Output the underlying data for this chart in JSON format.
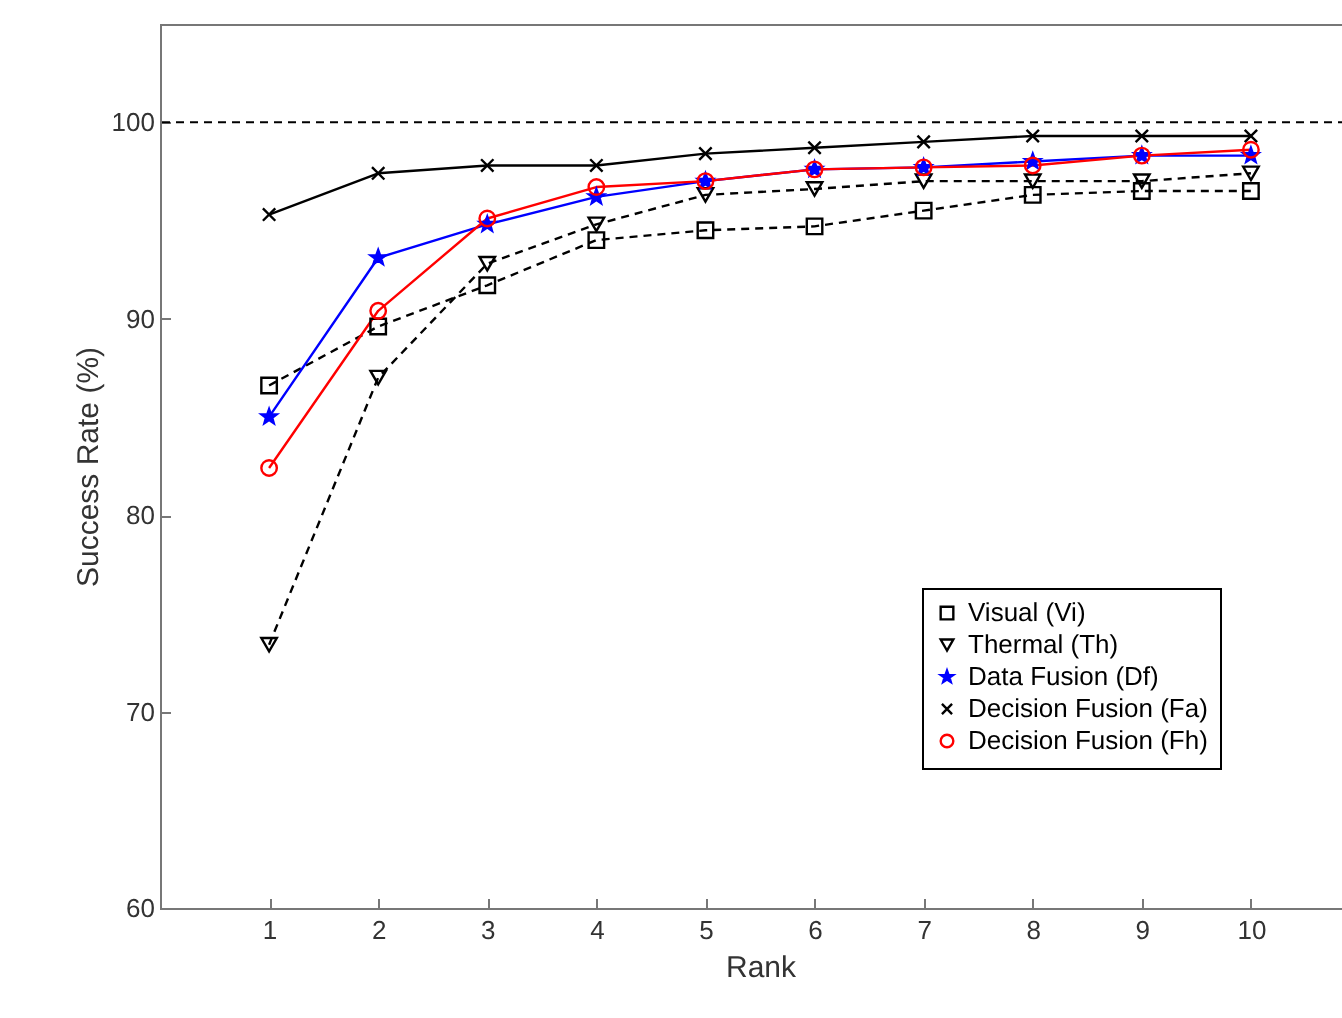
{
  "chart_data": {
    "type": "line",
    "xlabel": "Rank",
    "ylabel": "Success Rate (%)",
    "x": [
      1,
      2,
      3,
      4,
      5,
      6,
      7,
      8,
      9,
      10
    ],
    "xlim": [
      0,
      11
    ],
    "xticks": [
      1,
      2,
      3,
      4,
      5,
      6,
      7,
      8,
      9,
      10
    ],
    "ylim": [
      60,
      105
    ],
    "yticks": [
      60,
      70,
      80,
      90,
      100
    ],
    "grid": false,
    "legend": "bottom right",
    "ref_lines": [
      {
        "axis": "y",
        "value": 100,
        "color": "#000000",
        "line_style": "dashed"
      }
    ],
    "series": [
      {
        "name": "Visual (Vi)",
        "color": "#000000",
        "marker": "square",
        "line_style": "dashed",
        "values": [
          86.6,
          89.6,
          91.7,
          94.0,
          94.5,
          94.7,
          95.5,
          96.3,
          96.5,
          96.5
        ]
      },
      {
        "name": "Thermal (Th)",
        "color": "#000000",
        "marker": "triangle",
        "line_style": "dashed",
        "values": [
          73.4,
          87.0,
          92.8,
          94.8,
          96.3,
          96.6,
          97.0,
          97.0,
          97.0,
          97.4
        ]
      },
      {
        "name": "Data Fusion (Df)",
        "color": "#0000ff",
        "marker": "star",
        "line_style": "solid",
        "values": [
          85.0,
          93.1,
          94.8,
          96.2,
          97.0,
          97.6,
          97.7,
          98.0,
          98.3,
          98.3
        ]
      },
      {
        "name": "Decision Fusion (Fa)",
        "color": "#000000",
        "marker": "cross",
        "line_style": "solid",
        "values": [
          95.3,
          97.4,
          97.8,
          97.8,
          98.4,
          98.7,
          99.0,
          99.3,
          99.3,
          99.3
        ]
      },
      {
        "name": "Decision Fusion (Fh)",
        "color": "#ff0000",
        "marker": "circle",
        "line_style": "solid",
        "values": [
          82.4,
          90.4,
          95.1,
          96.7,
          97.0,
          97.6,
          97.7,
          97.8,
          98.3,
          98.6
        ]
      }
    ]
  }
}
